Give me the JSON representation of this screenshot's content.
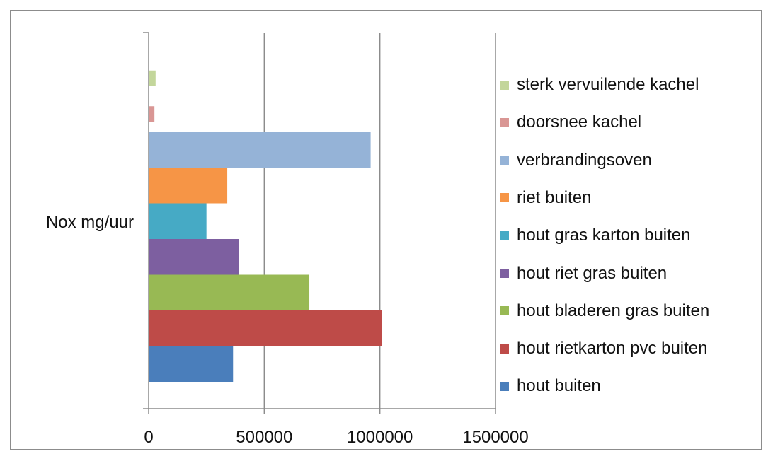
{
  "chart_data": {
    "type": "bar",
    "orientation": "horizontal",
    "title": "",
    "xlabel": "",
    "ylabel": "",
    "categories": [
      "Nox mg/uur"
    ],
    "xlim": [
      0,
      1500000
    ],
    "xticks": [
      0,
      500000,
      1000000,
      1500000
    ],
    "xtick_labels": [
      "0",
      "500000",
      "1000000",
      "1500000"
    ],
    "grid": "vertical major gridlines",
    "legend_position": "right",
    "series": [
      {
        "name": "hout buiten",
        "values": [
          365000
        ],
        "color": "#4a7ebb"
      },
      {
        "name": "hout rietkarton pvc buiten",
        "values": [
          1010000
        ],
        "color": "#be4b48"
      },
      {
        "name": "hout bladeren gras buiten",
        "values": [
          695000
        ],
        "color": "#98b954"
      },
      {
        "name": "hout riet gras buiten",
        "values": [
          390000
        ],
        "color": "#7d5fa0"
      },
      {
        "name": "hout gras karton buiten",
        "values": [
          250000
        ],
        "color": "#46aac5"
      },
      {
        "name": "riet buiten",
        "values": [
          340000
        ],
        "color": "#f69546"
      },
      {
        "name": "verbrandingsoven",
        "values": [
          960000
        ],
        "color": "#95b3d7"
      },
      {
        "name": "doorsnee kachel",
        "values": [
          25000
        ],
        "color": "#d99694"
      },
      {
        "name": "sterk vervuilende kachel",
        "values": [
          30000
        ],
        "color": "#c3d69b"
      }
    ]
  }
}
